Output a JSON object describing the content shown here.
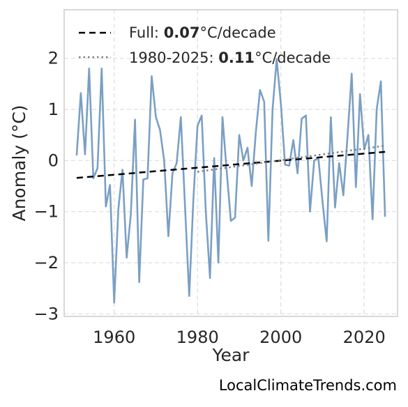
{
  "chart_data": {
    "type": "line",
    "xlabel": "Year",
    "ylabel": "Anomaly (°C)",
    "xlim": [
      1948,
      2028
    ],
    "ylim": [
      -3.05,
      2.95
    ],
    "xticks": [
      1960,
      1980,
      2000,
      2020
    ],
    "xtick_labels": [
      "1960",
      "1980",
      "2000",
      "2020"
    ],
    "yticks": [
      -3,
      -2,
      -1,
      0,
      1,
      2
    ],
    "ytick_labels": [
      "−3",
      "−2",
      "−1",
      "0",
      "1",
      "2"
    ],
    "grid": true,
    "legend_position": "upper-left",
    "watermark": "LocalClimateTrends.com",
    "colors": {
      "series": "#7b9fc4",
      "full_trend": "#000000",
      "recent_trend": "#808080",
      "grid": "#dddddd",
      "frame": "#cccccc"
    },
    "series": [
      {
        "values": {
          "x": [
            1951,
            1952,
            1953,
            1954,
            1955,
            1956,
            1957,
            1958,
            1959,
            1960,
            1961,
            1962,
            1963,
            1964,
            1965,
            1966,
            1967,
            1968,
            1969,
            1970,
            1971,
            1972,
            1973,
            1974,
            1975,
            1976,
            1977,
            1978,
            1979,
            1980,
            1981,
            1982,
            1983,
            1984,
            1985,
            1986,
            1987,
            1988,
            1989,
            1990,
            1991,
            1992,
            1993,
            1994,
            1995,
            1996,
            1997,
            1998,
            1999,
            2000,
            2001,
            2002,
            2003,
            2004,
            2005,
            2006,
            2007,
            2008,
            2009,
            2010,
            2011,
            2012,
            2013,
            2014,
            2015,
            2016,
            2017,
            2018,
            2019,
            2020,
            2021,
            2022,
            2023,
            2024,
            2025
          ],
          "y": [
            0.1,
            1.32,
            0.12,
            1.8,
            -0.35,
            -0.15,
            1.8,
            -0.9,
            -0.48,
            -2.78,
            -0.95,
            -0.18,
            -1.9,
            -1.05,
            0.8,
            -2.38,
            -0.37,
            -0.35,
            1.65,
            0.85,
            0.6,
            0.0,
            -1.48,
            -0.25,
            -0.05,
            0.85,
            -0.9,
            -2.65,
            -0.78,
            0.68,
            0.88,
            -1.0,
            -2.3,
            0.05,
            -2.0,
            0.85,
            -0.2,
            -1.18,
            -1.12,
            0.5,
            0.0,
            0.25,
            -0.5,
            0.55,
            1.38,
            1.15,
            -1.57,
            1.0,
            1.98,
            1.12,
            -0.08,
            -0.1,
            0.4,
            -0.25,
            0.82,
            0.88,
            -1.0,
            0.0,
            0.05,
            -0.8,
            -1.58,
            0.85,
            -0.92,
            -0.05,
            -0.68,
            0.48,
            1.7,
            -0.52,
            1.3,
            0.22,
            0.5,
            -1.15,
            1.0,
            1.55,
            -1.1
          ]
        }
      }
    ],
    "trends": [
      {
        "name": "Full",
        "rate": "0.07",
        "unit": "°C/decade",
        "x": [
          1951,
          2025
        ],
        "y": [
          -0.34,
          0.17
        ],
        "style": "dashed"
      },
      {
        "name": "1980-2025",
        "rate": "0.11",
        "unit": "°C/decade",
        "x": [
          1980,
          2025
        ],
        "y": [
          -0.22,
          0.29
        ],
        "style": "dotted"
      }
    ]
  }
}
